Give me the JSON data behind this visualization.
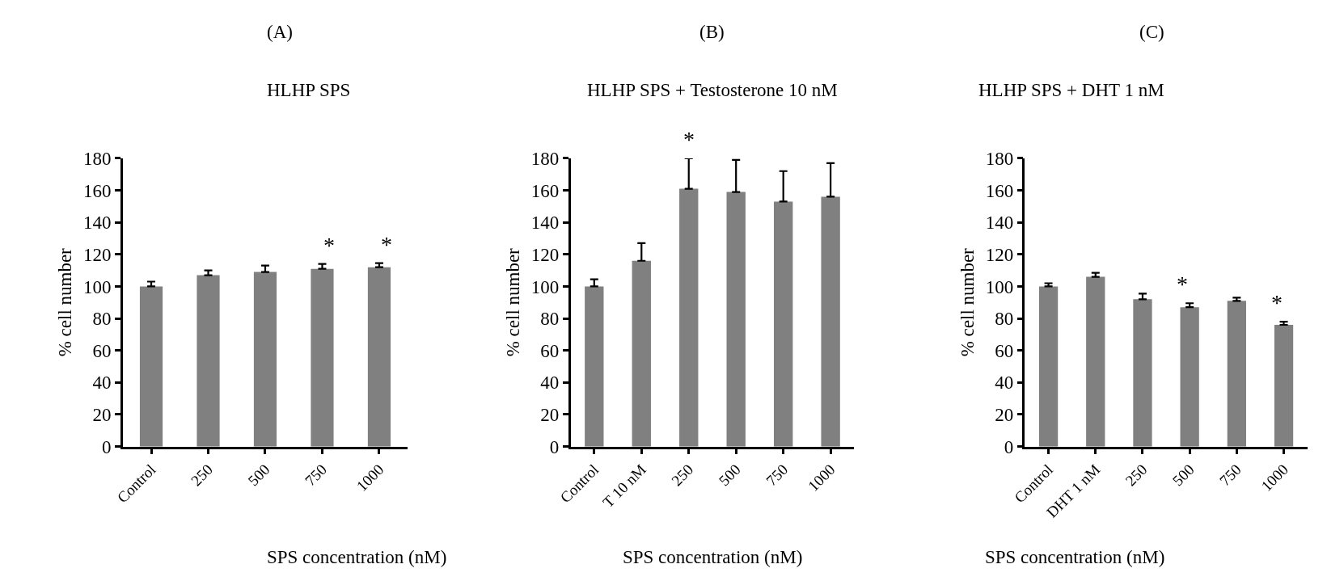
{
  "chart_data": [
    {
      "type": "bar",
      "title": "(A)",
      "subtitle": "HLHP SPS",
      "xlabel": "SPS concentration (nM)",
      "ylabel": "% cell number",
      "categories": [
        "Control",
        "250",
        "500",
        "750",
        "1000"
      ],
      "values": [
        100,
        107,
        109,
        111,
        112
      ],
      "errors": [
        3,
        3,
        4,
        3,
        2.5
      ],
      "color": "#808080",
      "ylim": [
        0,
        180
      ],
      "yticks": [
        0,
        20,
        40,
        60,
        80,
        100,
        120,
        140,
        160,
        180
      ],
      "annotations": [
        {
          "text": "*",
          "x": "750",
          "y": 111
        },
        {
          "text": "*",
          "x": "1000",
          "y": 112
        }
      ]
    },
    {
      "type": "bar",
      "title": "(B)",
      "subtitle": "HLHP SPS + Testosterone 10 nM",
      "xlabel": "SPS concentration (nM)",
      "ylabel": "% cell number",
      "categories": [
        "Control",
        "T 10 nM",
        "250",
        "500",
        "750",
        "1000"
      ],
      "values": [
        100,
        116,
        161,
        159,
        153,
        156
      ],
      "errors": [
        4.5,
        11,
        19,
        20,
        19,
        21
      ],
      "color": "#808080",
      "ylim": [
        0,
        180
      ],
      "yticks": [
        0,
        20,
        40,
        60,
        80,
        100,
        120,
        140,
        160,
        180
      ],
      "annotations": [
        {
          "text": "*",
          "x": "250",
          "y": 161
        }
      ]
    },
    {
      "type": "bar",
      "title": "(C)",
      "subtitle": "HLHP SPS + DHT 1 nM",
      "xlabel": "SPS concentration (nM)",
      "ylabel": "% cell number",
      "categories": [
        "Control",
        "DHT 1 nM",
        "250",
        "500",
        "750",
        "1000"
      ],
      "values": [
        100,
        106,
        92,
        87,
        91,
        76
      ],
      "errors": [
        2,
        2.5,
        3.5,
        2.5,
        2,
        2
      ],
      "color": "#808080",
      "ylim": [
        0,
        180
      ],
      "yticks": [
        0,
        20,
        40,
        60,
        80,
        100,
        120,
        140,
        160,
        180
      ],
      "annotations": [
        {
          "text": "*",
          "x": "500",
          "y": 87
        },
        {
          "text": "*",
          "x": "1000",
          "y": 76
        }
      ]
    }
  ]
}
